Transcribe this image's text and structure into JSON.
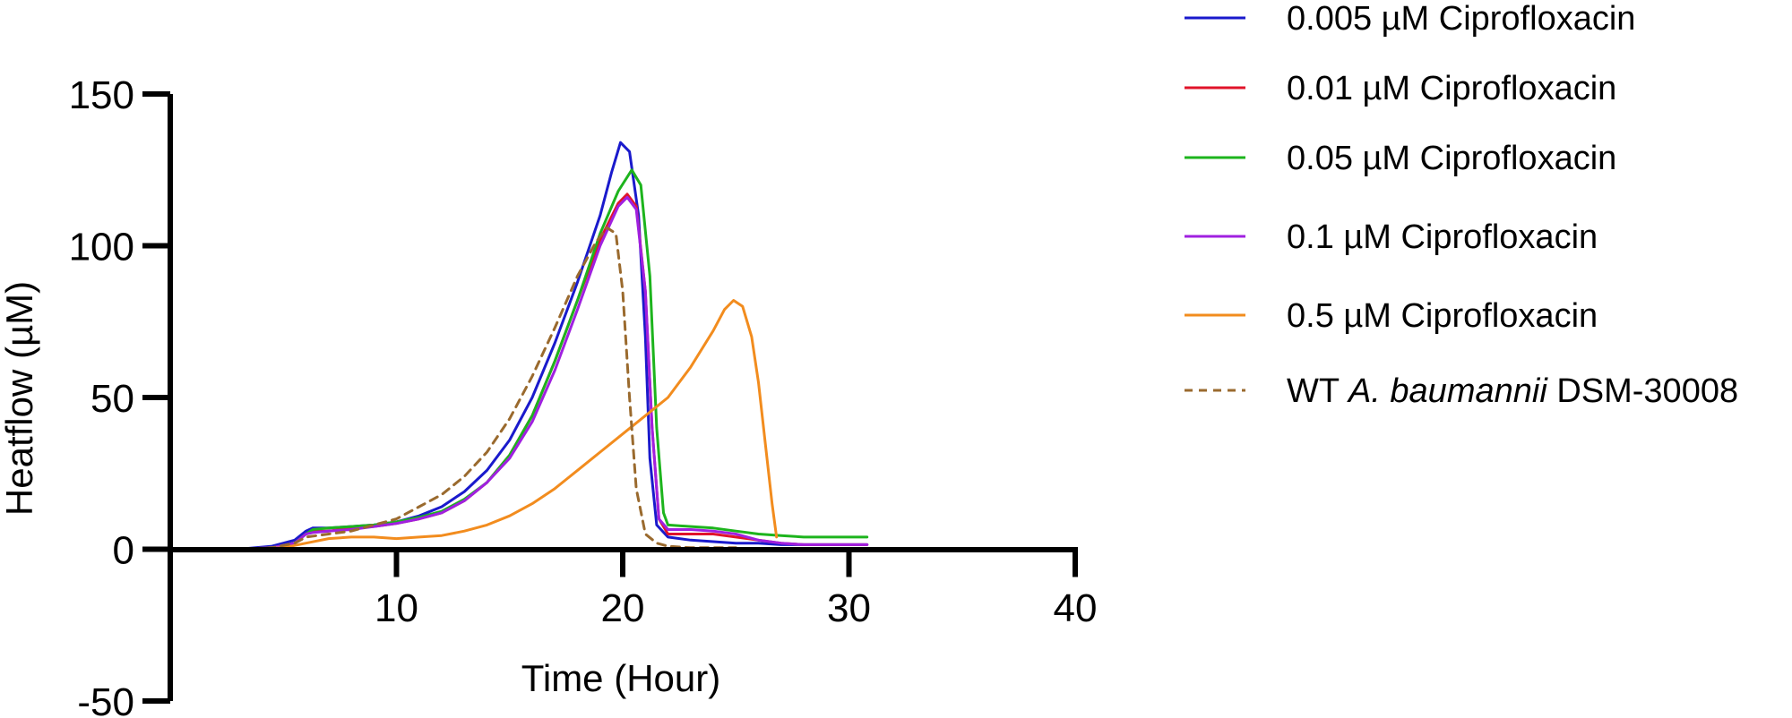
{
  "chart_data": {
    "type": "line",
    "title": "",
    "xlabel": "Time (Hour)",
    "ylabel": "Heatflow (µM)",
    "xlim": [
      0,
      40
    ],
    "ylim": [
      -50,
      150
    ],
    "x_ticks": [
      10,
      20,
      30,
      40
    ],
    "y_ticks": [
      -50,
      0,
      50,
      100,
      150
    ],
    "grid": false,
    "legend_position": "top-right",
    "series": [
      {
        "name": "0.005 µM Ciprofloxacin",
        "legend_parts": [
          {
            "text": "0.005 µM Ciprofloxacin",
            "italic": false
          }
        ],
        "color": "#1a1acc",
        "dash": "solid",
        "x": [
          3.0,
          4.5,
          5.5,
          6.0,
          6.3,
          7.0,
          8.0,
          9.0,
          10.0,
          11.0,
          12.0,
          13.0,
          14.0,
          15.0,
          16.0,
          17.0,
          18.0,
          19.0,
          19.5,
          19.9,
          20.3,
          20.7,
          21.0,
          21.2,
          21.5,
          22.0,
          23.0,
          24.0,
          25.0,
          26.0,
          27.0,
          28.0,
          29.0,
          30.0,
          30.8
        ],
        "y": [
          0,
          1,
          3,
          6,
          7,
          7,
          7.5,
          8,
          9,
          11,
          14,
          19,
          26,
          36,
          50,
          68,
          88,
          110,
          124,
          134,
          131,
          110,
          70,
          30,
          8,
          4,
          3,
          2.5,
          2,
          2,
          1.5,
          1.5,
          1.5,
          1.5,
          1.5
        ]
      },
      {
        "name": "0.01 µM Ciprofloxacin",
        "legend_parts": [
          {
            "text": "0.01 µM Ciprofloxacin",
            "italic": false
          }
        ],
        "color": "#e0142a",
        "dash": "solid",
        "x": [
          3.0,
          4.5,
          5.5,
          6.0,
          6.3,
          7.0,
          8.0,
          9.0,
          10.0,
          11.0,
          12.0,
          13.0,
          14.0,
          15.0,
          16.0,
          17.0,
          18.0,
          19.0,
          19.8,
          20.2,
          20.6,
          21.0,
          21.3,
          21.6,
          22.0,
          23.0,
          24.0,
          25.0,
          26.0,
          27.0,
          28.0,
          29.0,
          30.0,
          30.8
        ],
        "y": [
          0,
          0.5,
          2,
          5,
          6,
          6,
          7,
          7.5,
          8.5,
          10,
          12,
          16,
          22,
          31,
          44,
          62,
          82,
          102,
          114,
          117,
          113,
          85,
          40,
          10,
          5,
          5,
          5,
          4,
          3,
          2,
          1.5,
          1.5,
          1.5,
          1.5
        ]
      },
      {
        "name": "0.05 µM Ciprofloxacin",
        "legend_parts": [
          {
            "text": "0.05 µM Ciprofloxacin",
            "italic": false
          }
        ],
        "color": "#1db41d",
        "dash": "solid",
        "x": [
          3.0,
          4.5,
          5.5,
          6.0,
          6.3,
          7.0,
          8.0,
          9.0,
          10.0,
          11.0,
          12.0,
          13.0,
          14.0,
          15.0,
          16.0,
          17.0,
          18.0,
          19.0,
          19.8,
          20.4,
          20.8,
          21.2,
          21.5,
          21.8,
          22.0,
          23.0,
          24.0,
          25.0,
          26.0,
          27.0,
          28.0,
          29.0,
          30.0,
          30.8
        ],
        "y": [
          0,
          0.5,
          2,
          5,
          6.5,
          7,
          7.5,
          8,
          9,
          10.5,
          12.5,
          16.5,
          22,
          31,
          44,
          62,
          82,
          104,
          118,
          125,
          120,
          90,
          40,
          12,
          8,
          7.5,
          7,
          6,
          5,
          4.5,
          4,
          4,
          4,
          4
        ]
      },
      {
        "name": "0.1 µM Ciprofloxacin",
        "legend_parts": [
          {
            "text": "0.1 µM Ciprofloxacin",
            "italic": false
          }
        ],
        "color": "#a020e0",
        "dash": "solid",
        "x": [
          3.0,
          4.5,
          5.5,
          6.0,
          6.3,
          7.0,
          8.0,
          9.0,
          10.0,
          11.0,
          12.0,
          13.0,
          14.0,
          15.0,
          16.0,
          17.0,
          18.0,
          19.0,
          19.8,
          20.2,
          20.6,
          21.0,
          21.3,
          21.6,
          22.0,
          23.0,
          24.0,
          25.0,
          26.0,
          27.0,
          28.0,
          29.0,
          30.0,
          30.8
        ],
        "y": [
          0,
          0.5,
          2,
          5,
          5.5,
          6,
          6.5,
          7.5,
          8.5,
          10,
          12,
          16,
          22,
          30,
          42,
          59,
          79,
          100,
          113,
          116,
          112,
          85,
          40,
          10,
          6.5,
          6.5,
          6,
          5,
          3,
          2,
          1.5,
          1.5,
          1.5,
          1.5
        ]
      },
      {
        "name": "0.5 µM Ciprofloxacin",
        "legend_parts": [
          {
            "text": "0.5 µM Ciprofloxacin",
            "italic": false
          }
        ],
        "color": "#f28c1e",
        "dash": "solid",
        "x": [
          3.0,
          5.0,
          6.0,
          7.0,
          8.0,
          9.0,
          10.0,
          11.0,
          12.0,
          13.0,
          14.0,
          15.0,
          16.0,
          17.0,
          18.0,
          19.0,
          20.0,
          21.0,
          22.0,
          23.0,
          24.0,
          24.5,
          24.9,
          25.3,
          25.7,
          26.0,
          26.3,
          26.6,
          26.8
        ],
        "y": [
          0,
          0.5,
          2,
          3.5,
          4,
          4,
          3.5,
          4,
          4.5,
          6,
          8,
          11,
          15,
          20,
          26,
          32,
          38,
          44,
          50,
          60,
          72,
          79,
          82,
          80,
          70,
          55,
          35,
          15,
          4
        ]
      },
      {
        "name": "WT A. baumannii DSM-30008",
        "legend_parts": [
          {
            "text": "WT ",
            "italic": false
          },
          {
            "text": "A. baumannii",
            "italic": true
          },
          {
            "text": " DSM-30008",
            "italic": false
          }
        ],
        "color": "#9a6a2e",
        "dash": "dashed",
        "x": [
          3.0,
          4.5,
          5.5,
          6.0,
          7.0,
          8.0,
          9.0,
          10.0,
          11.0,
          12.0,
          13.0,
          14.0,
          15.0,
          16.0,
          17.0,
          18.0,
          18.8,
          19.3,
          19.7,
          20.0,
          20.3,
          20.6,
          21.0,
          21.5,
          22.0,
          23.0,
          24.0,
          25.0
        ],
        "y": [
          0,
          0.5,
          2,
          4,
          5,
          6,
          8,
          10,
          14,
          18,
          24,
          32,
          43,
          57,
          73,
          90,
          101,
          106,
          104,
          85,
          50,
          20,
          5,
          2,
          1,
          0.5,
          0.5,
          0.5
        ]
      }
    ]
  }
}
